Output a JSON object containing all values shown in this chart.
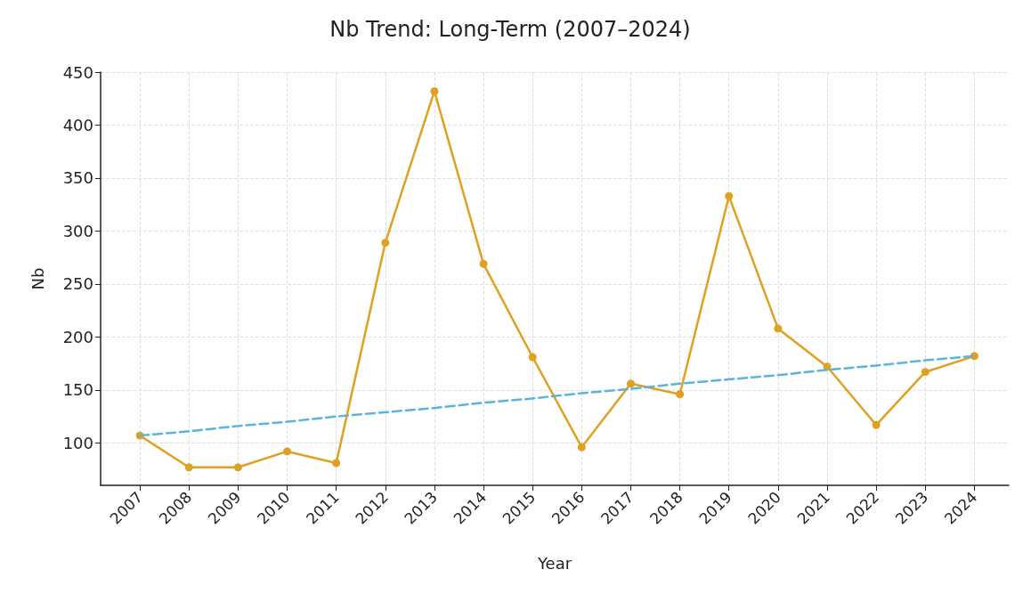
{
  "chart_data": {
    "type": "line",
    "title": "Nb Trend: Long-Term (2007–2024)",
    "xlabel": "Year",
    "ylabel": "Nb",
    "categories": [
      "2007",
      "2008",
      "2009",
      "2010",
      "2011",
      "2012",
      "2013",
      "2014",
      "2015",
      "2016",
      "2017",
      "2018",
      "2019",
      "2020",
      "2021",
      "2022",
      "2023",
      "2024"
    ],
    "series": [
      {
        "color": "#e0a020",
        "marker": "circle",
        "line_style": "solid",
        "values": [
          107,
          77,
          77,
          92,
          81,
          289,
          432,
          269,
          181,
          96,
          156,
          146,
          333,
          208,
          172,
          117,
          167,
          182
        ]
      },
      {
        "color": "#5ab4dc",
        "marker": "none",
        "line_style": "dashed",
        "values": [
          107,
          111,
          116,
          120,
          125,
          129,
          133,
          138,
          142,
          147,
          151,
          156,
          160,
          164,
          169,
          173,
          178,
          182
        ]
      }
    ],
    "ylim": [
      60,
      450
    ],
    "yticks": [
      100,
      150,
      200,
      250,
      300,
      350,
      400,
      450
    ],
    "grid": true
  }
}
